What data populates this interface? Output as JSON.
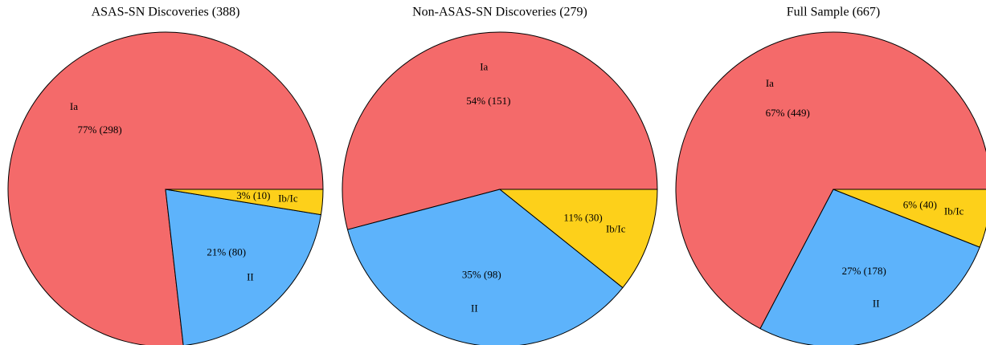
{
  "chart_data": [
    {
      "type": "pie",
      "title": "ASAS-SN Discoveries (388)",
      "categories": [
        "Ia",
        "II",
        "Ib/Ic"
      ],
      "values": [
        298,
        80,
        10
      ],
      "value_labels": [
        "77% (298)",
        "21% (80)",
        "3% (10)"
      ],
      "colors": [
        "#f46a6a",
        "#5db3fb",
        "#fdd01a"
      ]
    },
    {
      "type": "pie",
      "title": "Non-ASAS-SN Discoveries (279)",
      "categories": [
        "Ia",
        "II",
        "Ib/Ic"
      ],
      "values": [
        151,
        98,
        30
      ],
      "value_labels": [
        "54% (151)",
        "35% (98)",
        "11% (30)"
      ],
      "colors": [
        "#f46a6a",
        "#5db3fb",
        "#fdd01a"
      ]
    },
    {
      "type": "pie",
      "title": "Full Sample (667)",
      "categories": [
        "Ia",
        "II",
        "Ib/Ic"
      ],
      "values": [
        449,
        178,
        40
      ],
      "value_labels": [
        "67% (449)",
        "27% (178)",
        "6% (40)"
      ],
      "colors": [
        "#f46a6a",
        "#5db3fb",
        "#fdd01a"
      ]
    }
  ]
}
